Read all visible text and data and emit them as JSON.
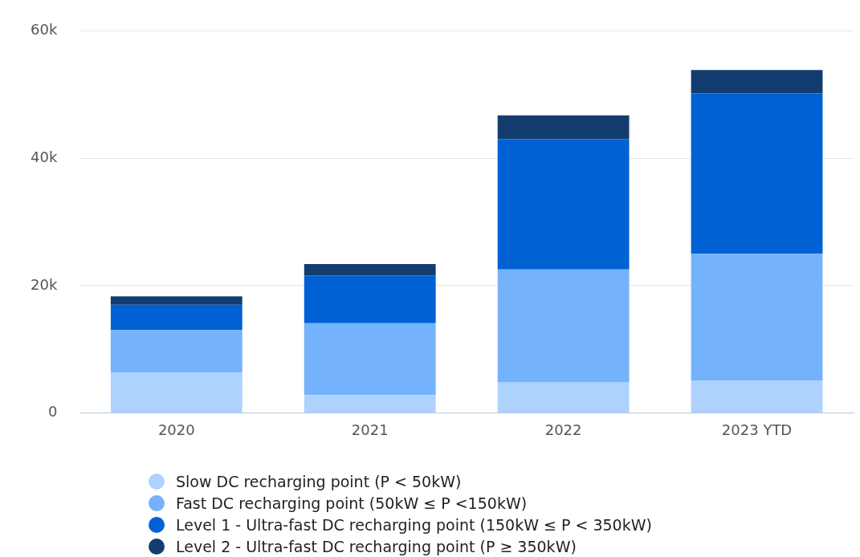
{
  "chart_data": {
    "type": "bar",
    "stacked": true,
    "categories": [
      "2020",
      "2021",
      "2022",
      "2023 YTD"
    ],
    "series": [
      {
        "name": "Slow DC recharging point (P < 50kW)",
        "color": "#aed2fe",
        "values": [
          6.3,
          2.8,
          4.85,
          5.1
        ]
      },
      {
        "name": "Fast DC recharging point (50kW ≤ P <150kW)",
        "color": "#74b2fc",
        "values": [
          6.7,
          11.3,
          17.7,
          19.9
        ]
      },
      {
        "name": "Level 1 - Ultra-fast DC recharging point (150kW ≤ P < 350kW)",
        "color": "#0061d4",
        "values": [
          4.0,
          7.5,
          20.5,
          25.2
        ]
      },
      {
        "name": "Level 2 - Ultra-fast DC recharging point (P ≥ 350kW)",
        "color": "#143d6f",
        "values": [
          1.3,
          1.8,
          3.7,
          3.7
        ]
      }
    ],
    "ylim": [
      0,
      60
    ],
    "yticks": [
      {
        "value": 0,
        "label": "0"
      },
      {
        "value": 20,
        "label": "20k"
      },
      {
        "value": 40,
        "label": "40k"
      },
      {
        "value": 60,
        "label": "60k"
      }
    ],
    "grid": "y",
    "legend": "bottom"
  }
}
